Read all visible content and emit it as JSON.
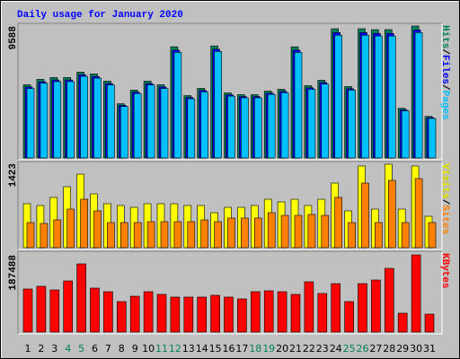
{
  "chart_data": [
    {
      "type": "bar",
      "title": "Daily usage for January 2020",
      "ylim": [
        0,
        9588
      ],
      "yticks": [
        9588
      ],
      "legend_separator": "/",
      "series": [
        {
          "name": "Hits",
          "color": "#00805c",
          "values": [
            5319,
            5713,
            5845,
            5845,
            6239,
            6107,
            5582,
            3940,
            4925,
            5582,
            5319,
            8077,
            4531,
            5057,
            8143,
            4728,
            4597,
            4597,
            4860,
            4991,
            8077,
            5254,
            5648,
            9391,
            5188,
            9391,
            9325,
            9325,
            3612,
            9588,
            3021
          ]
        },
        {
          "name": "Files",
          "color": "#0000ff",
          "values": [
            5160,
            5540,
            5670,
            5670,
            6050,
            5920,
            5410,
            3820,
            4780,
            5410,
            5160,
            7830,
            4400,
            4910,
            7900,
            4590,
            4460,
            4460,
            4710,
            4840,
            7830,
            5100,
            5480,
            9110,
            5030,
            9110,
            9050,
            9050,
            3500,
            9300,
            2930
          ]
        },
        {
          "name": "Pages",
          "color": "#00c0ff",
          "values": [
            5050,
            5430,
            5550,
            5550,
            5930,
            5800,
            5300,
            3740,
            4680,
            5300,
            5050,
            7670,
            4300,
            4800,
            7740,
            4490,
            4370,
            4370,
            4620,
            4740,
            7670,
            4990,
            5370,
            8920,
            4930,
            8920,
            8860,
            8860,
            3430,
            9110,
            2870
          ]
        }
      ]
    },
    {
      "type": "bar",
      "ylim": [
        0,
        1423
      ],
      "yticks": [
        1423
      ],
      "legend_separator": "/",
      "series": [
        {
          "name": "Visits",
          "color": "#ffff00",
          "values": [
            742,
            712,
            848,
            1029,
            1241,
            908,
            742,
            712,
            681,
            742,
            742,
            742,
            712,
            712,
            590,
            681,
            681,
            712,
            817,
            772,
            817,
            712,
            817,
            1090,
            621,
            1378,
            651,
            1408,
            651,
            1378,
            530
          ]
        },
        {
          "name": "Sites",
          "color": "#ff8000",
          "values": [
            424,
            409,
            469,
            651,
            818,
            621,
            424,
            424,
            424,
            439,
            439,
            439,
            439,
            469,
            439,
            500,
            500,
            500,
            590,
            545,
            545,
            560,
            545,
            848,
            424,
            1090,
            424,
            1135,
            424,
            1166,
            424
          ]
        }
      ]
    },
    {
      "type": "bar",
      "ylim": [
        0,
        187488
      ],
      "yticks": [
        187488
      ],
      "categories": [
        "1",
        "2",
        "3",
        "4",
        "5",
        "6",
        "7",
        "8",
        "9",
        "10",
        "11",
        "12",
        "13",
        "14",
        "15",
        "16",
        "17",
        "18",
        "19",
        "20",
        "21",
        "22",
        "23",
        "24",
        "25",
        "26",
        "27",
        "28",
        "29",
        "30",
        "31"
      ],
      "category_colors": [
        "#000000",
        "#000000",
        "#000000",
        "#00805c",
        "#00805c",
        "#000000",
        "#000000",
        "#000000",
        "#000000",
        "#000000",
        "#00805c",
        "#00805c",
        "#000000",
        "#000000",
        "#000000",
        "#000000",
        "#000000",
        "#00805c",
        "#00805c",
        "#000000",
        "#000000",
        "#000000",
        "#000000",
        "#000000",
        "#00805c",
        "#00805c",
        "#000000",
        "#000000",
        "#000000",
        "#000000",
        "#000000"
      ],
      "series": [
        {
          "name": "KBytes",
          "color": "#ff0000",
          "values": [
            104640,
            111180,
            102460,
            124260,
            165680,
            106820,
            98100,
            74120,
            87200,
            98100,
            91560,
            85020,
            85020,
            85020,
            89380,
            85020,
            80660,
            98100,
            100280,
            98100,
            91560,
            122080,
            93740,
            117720,
            74120,
            117720,
            126440,
            154780,
            45780,
            187488,
            43600
          ]
        }
      ]
    }
  ]
}
